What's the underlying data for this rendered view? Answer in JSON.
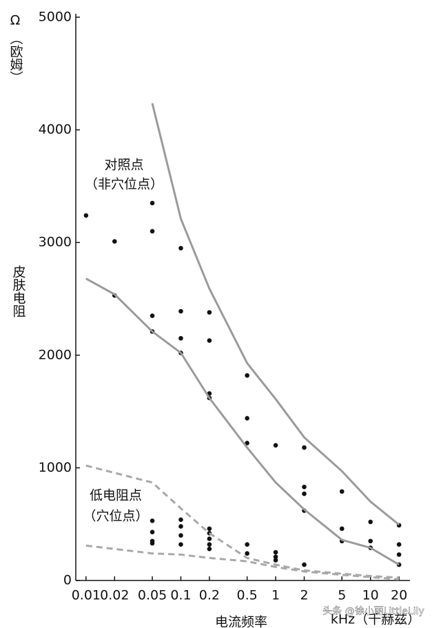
{
  "chart_data": {
    "type": "scatter",
    "ylabel_unit": "Ω",
    "ylabel_unit_name": "（欧姆）",
    "ylabel": "皮肤电阻",
    "xlabel": "电流频率",
    "xunit": "kHz（千赫兹）",
    "log_x": true,
    "xlim": [
      0.0078,
      24
    ],
    "ylim": [
      0,
      5000
    ],
    "xticks": [
      0.01,
      0.02,
      0.05,
      0.1,
      0.2,
      0.5,
      1,
      2,
      5,
      10,
      20
    ],
    "yticks": [
      0,
      1000,
      2000,
      3000,
      4000,
      5000
    ],
    "annotations": [
      "对照点",
      "（非穴位点）",
      "低电阻点",
      "（穴位点）"
    ],
    "watermark": "头条 @徐小丽LittleLily",
    "series": [
      {
        "style": "points",
        "color": "#111111",
        "x": [
          0.01,
          0.02,
          0.02,
          0.05,
          0.05,
          0.05,
          0.05,
          0.1,
          0.1,
          0.1,
          0.1,
          0.2,
          0.2,
          0.2,
          0.2,
          0.5,
          0.5,
          0.5,
          1,
          2,
          2,
          2,
          2,
          5,
          5,
          5,
          10,
          10,
          10,
          20,
          20,
          20,
          20
        ],
        "y": [
          3240,
          3010,
          2530,
          3350,
          3100,
          2350,
          2210,
          2950,
          2390,
          2150,
          2020,
          2380,
          2130,
          1660,
          1620,
          1820,
          1440,
          1220,
          1200,
          1180,
          830,
          770,
          620,
          790,
          460,
          350,
          520,
          350,
          290,
          490,
          320,
          230,
          140
        ]
      },
      {
        "style": "points",
        "color": "#111111",
        "x": [
          0.05,
          0.05,
          0.05,
          0.05,
          0.1,
          0.1,
          0.1,
          0.1,
          0.2,
          0.2,
          0.2,
          0.2,
          0.2,
          0.5,
          0.5,
          1,
          1,
          1,
          2
        ],
        "y": [
          530,
          430,
          350,
          330,
          540,
          480,
          400,
          320,
          460,
          420,
          370,
          320,
          280,
          320,
          240,
          250,
          210,
          180,
          140
        ]
      },
      {
        "style": "line",
        "color": "#9a9a9a",
        "x": [
          0.05,
          0.1,
          0.2,
          0.5,
          1,
          2,
          5,
          10,
          20
        ],
        "y": [
          4236,
          3210,
          2590,
          1930,
          1610,
          1270,
          970,
          700,
          495
        ]
      },
      {
        "style": "line",
        "color": "#9a9a9a",
        "x": [
          0.01,
          0.02,
          0.05,
          0.1,
          0.2,
          0.5,
          1,
          2,
          5,
          10,
          20
        ],
        "y": [
          2680,
          2540,
          2210,
          2020,
          1620,
          1180,
          870,
          630,
          360,
          290,
          140
        ]
      },
      {
        "style": "dashed",
        "color": "#a8a8a8",
        "x": [
          0.01,
          0.05,
          0.1,
          0.2,
          0.5,
          1,
          2,
          5,
          10,
          20
        ],
        "y": [
          1020,
          870,
          640,
          420,
          200,
          140,
          90,
          60,
          40,
          25
        ]
      },
      {
        "style": "dashed",
        "color": "#a8a8a8",
        "x": [
          0.01,
          0.05,
          0.1,
          0.2,
          0.5,
          1,
          2,
          5,
          10,
          20
        ],
        "y": [
          310,
          240,
          230,
          200,
          170,
          120,
          80,
          50,
          30,
          10
        ]
      }
    ]
  }
}
